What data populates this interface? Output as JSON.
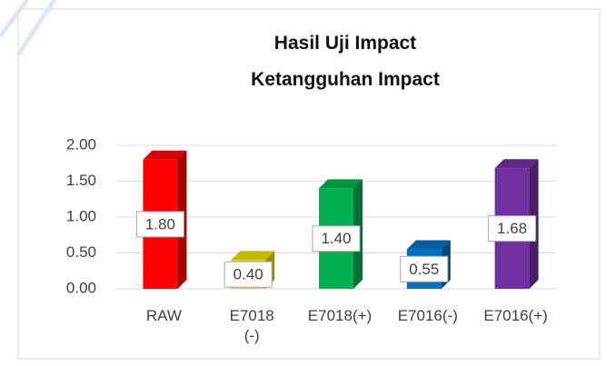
{
  "chart_data": {
    "type": "bar3d",
    "title": "Hasil Uji Impact",
    "subtitle": "Ketangguhan Impact",
    "categories": [
      "RAW",
      "E7018 (-)",
      "E7018(+)",
      "E7016(-)",
      "E7016(+)"
    ],
    "values": [
      1.8,
      0.4,
      1.4,
      0.55,
      1.68
    ],
    "value_labels": [
      "1.80",
      "0.40",
      "1.40",
      "0.55",
      "1.68"
    ],
    "colors": [
      "#ff0000",
      "#e8d900",
      "#00b050",
      "#0070c0",
      "#7030a0"
    ],
    "ylim": [
      0,
      2
    ],
    "yticks": [
      {
        "value": 0,
        "label": "0.00"
      },
      {
        "value": 0.5,
        "label": "0.50"
      },
      {
        "value": 1,
        "label": "1.00"
      },
      {
        "value": 1.5,
        "label": "1.50"
      },
      {
        "value": 2,
        "label": "2.00"
      }
    ],
    "grid": true
  }
}
